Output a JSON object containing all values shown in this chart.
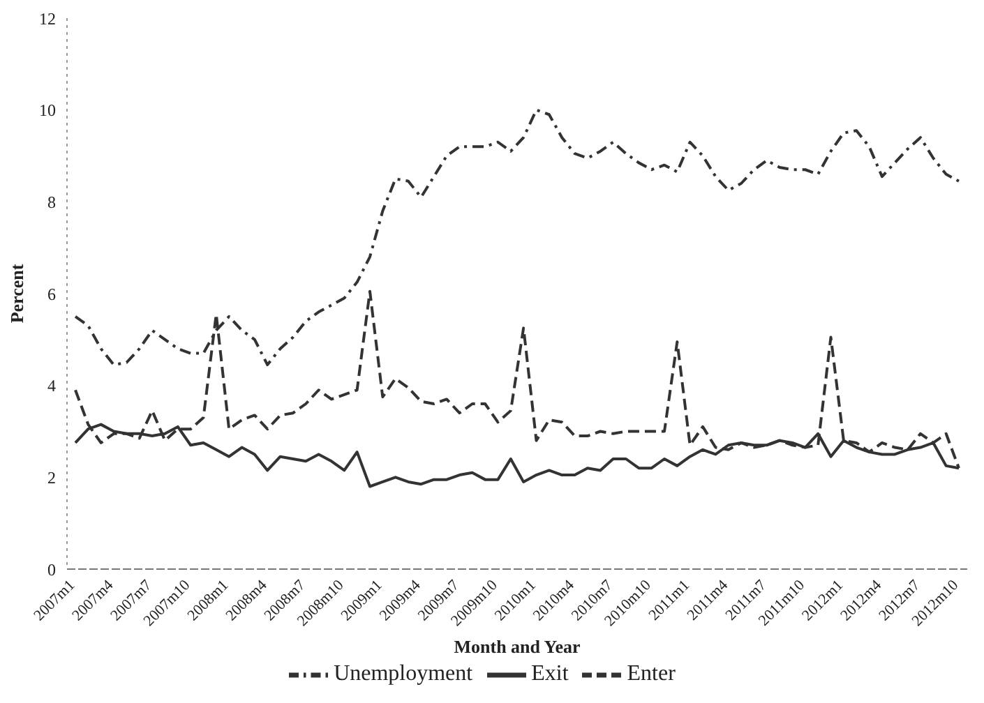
{
  "chart_data": {
    "type": "line",
    "xlabel": "Month and Year",
    "ylabel": "Percent",
    "categories": [
      "2007m1",
      null,
      null,
      "2007m4",
      null,
      null,
      "2007m7",
      null,
      null,
      "2007m10",
      null,
      null,
      "2008m1",
      null,
      null,
      "2008m4",
      null,
      null,
      "2008m7",
      null,
      null,
      "2008m10",
      null,
      null,
      "2009m1",
      null,
      null,
      "2009m4",
      null,
      null,
      "2009m7",
      null,
      null,
      "2009m10",
      null,
      null,
      "2010m1",
      null,
      null,
      "2010m4",
      null,
      null,
      "2010m7",
      null,
      null,
      "2010m10",
      null,
      null,
      "2011m1",
      null,
      null,
      "2011m4",
      null,
      null,
      "2011m7",
      null,
      null,
      "2011m10",
      null,
      null,
      "2012m1",
      null,
      null,
      "2012m4",
      null,
      null,
      "2012m7",
      null,
      null,
      "2012m10"
    ],
    "series": [
      {
        "name": "Unemployment",
        "color": "#333333",
        "line_style": "dashdot",
        "values": [
          5.5,
          5.3,
          4.8,
          4.45,
          4.5,
          4.8,
          5.2,
          5.0,
          4.8,
          4.7,
          4.7,
          5.2,
          5.5,
          5.2,
          5.0,
          4.45,
          4.8,
          5.05,
          5.4,
          5.6,
          5.75,
          5.9,
          6.25,
          6.8,
          7.8,
          8.5,
          8.45,
          8.1,
          8.55,
          9.0,
          9.2,
          9.2,
          9.2,
          9.3,
          9.1,
          9.4,
          10.0,
          9.9,
          9.4,
          9.05,
          8.95,
          9.1,
          9.3,
          9.05,
          8.85,
          8.7,
          8.8,
          8.65,
          9.3,
          9.0,
          8.55,
          8.25,
          8.4,
          8.7,
          8.9,
          8.75,
          8.7,
          8.7,
          8.6,
          9.1,
          9.5,
          9.55,
          9.2,
          8.55,
          8.85,
          9.15,
          9.4,
          8.95,
          8.6,
          8.45
        ]
      },
      {
        "name": "Exit",
        "color": "#333333",
        "line_style": "solid",
        "values": [
          2.75,
          3.05,
          3.15,
          3.0,
          2.95,
          2.95,
          2.9,
          2.95,
          3.1,
          2.7,
          2.75,
          2.6,
          2.45,
          2.65,
          2.5,
          2.15,
          2.45,
          2.4,
          2.35,
          2.5,
          2.35,
          2.15,
          2.55,
          1.8,
          1.9,
          2.0,
          1.9,
          1.85,
          1.95,
          1.95,
          2.05,
          2.1,
          1.95,
          1.95,
          2.4,
          1.9,
          2.05,
          2.15,
          2.05,
          2.05,
          2.2,
          2.15,
          2.4,
          2.4,
          2.2,
          2.2,
          2.4,
          2.25,
          2.45,
          2.6,
          2.5,
          2.7,
          2.75,
          2.7,
          2.7,
          2.8,
          2.75,
          2.65,
          2.95,
          2.45,
          2.8,
          2.65,
          2.55,
          2.5,
          2.5,
          2.6,
          2.65,
          2.75,
          2.25,
          2.2
        ]
      },
      {
        "name": "Enter",
        "color": "#333333",
        "line_style": "dashed",
        "values": [
          3.9,
          3.15,
          2.75,
          2.95,
          2.95,
          2.85,
          3.45,
          2.8,
          3.05,
          3.05,
          3.3,
          5.55,
          3.05,
          3.25,
          3.35,
          3.05,
          3.35,
          3.4,
          3.6,
          3.9,
          3.7,
          3.8,
          3.9,
          6.05,
          3.75,
          4.15,
          3.95,
          3.65,
          3.6,
          3.7,
          3.4,
          3.6,
          3.6,
          3.2,
          3.45,
          5.25,
          2.8,
          3.25,
          3.2,
          2.9,
          2.9,
          3.0,
          2.95,
          3.0,
          3.0,
          3.0,
          3.0,
          4.95,
          2.7,
          3.1,
          2.65,
          2.6,
          2.75,
          2.65,
          2.7,
          2.8,
          2.7,
          2.65,
          2.7,
          5.05,
          2.8,
          2.75,
          2.55,
          2.75,
          2.65,
          2.6,
          2.95,
          2.75,
          2.95,
          2.2
        ]
      }
    ],
    "ylim": [
      0,
      12
    ],
    "yticks": [
      0,
      2,
      4,
      6,
      8,
      10,
      12
    ],
    "grid": false,
    "legend": "bottom",
    "marker": "none"
  }
}
